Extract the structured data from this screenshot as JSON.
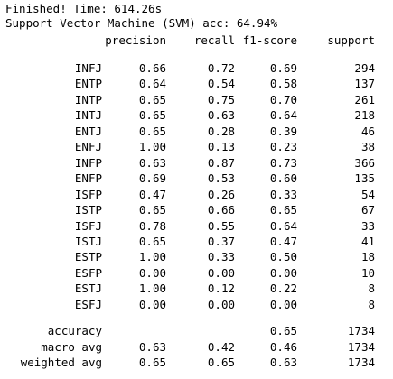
{
  "output": {
    "finished_line": "Finished! Time: 614.26s",
    "accuracy_line": "Support Vector Machine (SVM) acc: 64.94%"
  },
  "report": {
    "headers": {
      "precision": "precision",
      "recall": "recall",
      "f1": "f1-score",
      "support": "support"
    },
    "classes": [
      {
        "label": "INFJ",
        "precision": "0.66",
        "recall": "0.72",
        "f1": "0.69",
        "support": "294"
      },
      {
        "label": "ENTP",
        "precision": "0.64",
        "recall": "0.54",
        "f1": "0.58",
        "support": "137"
      },
      {
        "label": "INTP",
        "precision": "0.65",
        "recall": "0.75",
        "f1": "0.70",
        "support": "261"
      },
      {
        "label": "INTJ",
        "precision": "0.65",
        "recall": "0.63",
        "f1": "0.64",
        "support": "218"
      },
      {
        "label": "ENTJ",
        "precision": "0.65",
        "recall": "0.28",
        "f1": "0.39",
        "support": "46"
      },
      {
        "label": "ENFJ",
        "precision": "1.00",
        "recall": "0.13",
        "f1": "0.23",
        "support": "38"
      },
      {
        "label": "INFP",
        "precision": "0.63",
        "recall": "0.87",
        "f1": "0.73",
        "support": "366"
      },
      {
        "label": "ENFP",
        "precision": "0.69",
        "recall": "0.53",
        "f1": "0.60",
        "support": "135"
      },
      {
        "label": "ISFP",
        "precision": "0.47",
        "recall": "0.26",
        "f1": "0.33",
        "support": "54"
      },
      {
        "label": "ISTP",
        "precision": "0.65",
        "recall": "0.66",
        "f1": "0.65",
        "support": "67"
      },
      {
        "label": "ISFJ",
        "precision": "0.78",
        "recall": "0.55",
        "f1": "0.64",
        "support": "33"
      },
      {
        "label": "ISTJ",
        "precision": "0.65",
        "recall": "0.37",
        "f1": "0.47",
        "support": "41"
      },
      {
        "label": "ESTP",
        "precision": "1.00",
        "recall": "0.33",
        "f1": "0.50",
        "support": "18"
      },
      {
        "label": "ESFP",
        "precision": "0.00",
        "recall": "0.00",
        "f1": "0.00",
        "support": "10"
      },
      {
        "label": "ESTJ",
        "precision": "1.00",
        "recall": "0.12",
        "f1": "0.22",
        "support": "8"
      },
      {
        "label": "ESFJ",
        "precision": "0.00",
        "recall": "0.00",
        "f1": "0.00",
        "support": "8"
      }
    ],
    "summary": [
      {
        "label": "accuracy",
        "precision": "",
        "recall": "",
        "f1": "0.65",
        "support": "1734"
      },
      {
        "label": "macro avg",
        "precision": "0.63",
        "recall": "0.42",
        "f1": "0.46",
        "support": "1734"
      },
      {
        "label": "weighted avg",
        "precision": "0.65",
        "recall": "0.65",
        "f1": "0.63",
        "support": "1734"
      }
    ]
  }
}
